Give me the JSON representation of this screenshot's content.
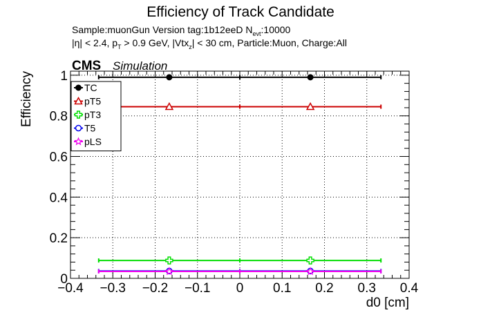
{
  "chart_data": {
    "type": "scatter",
    "title": "Efficiency of Track Candidate",
    "subtitle": {
      "line1": {
        "prefix": "Sample:muonGun   Version tag:1b12eeD  N",
        "sub": "evt",
        "suffix": ":10000"
      },
      "line2": {
        "p1": "|η| < 2.4, p",
        "sub1": "T",
        "p2": " > 0.9 GeV, |Vtx",
        "sub2": "z",
        "p3": "| < 30 cm, Particle:Muon, Charge:All"
      }
    },
    "cms_label": "CMS",
    "simulation_label": "Simulation",
    "xlabel": "d0 [cm]",
    "ylabel": "Efficiency",
    "xlim": [
      -0.4,
      0.4
    ],
    "ylim": [
      0,
      1.02
    ],
    "x_ticks": [
      -0.4,
      -0.3,
      -0.2,
      -0.1,
      0,
      0.1,
      0.2,
      0.3,
      0.4
    ],
    "x_tick_labels": [
      "−0.4",
      "−0.3",
      "−0.2",
      "−0.1",
      "0",
      "0.1",
      "0.2",
      "0.3",
      "0.4"
    ],
    "y_ticks": [
      0,
      0.2,
      0.4,
      0.6,
      0.8,
      1
    ],
    "y_tick_labels": [
      "0",
      "0.2",
      "0.4",
      "0.6",
      "0.8",
      "1"
    ],
    "grid": true,
    "legend_position": "top-left",
    "series": [
      {
        "name": "TC",
        "color": "#000000",
        "marker": "filled-circle",
        "x": [
          -0.1667,
          0.1667
        ],
        "xerr": [
          0.1667,
          0.1667
        ],
        "y": [
          0.99,
          0.99
        ]
      },
      {
        "name": "pT5",
        "color": "#cc0000",
        "marker": "open-triangle",
        "x": [
          -0.1667,
          0.1667
        ],
        "xerr": [
          0.1667,
          0.1667
        ],
        "y": [
          0.845,
          0.845
        ]
      },
      {
        "name": "pT3",
        "color": "#00dd00",
        "marker": "open-cross",
        "x": [
          -0.1667,
          0.1667
        ],
        "xerr": [
          0.1667,
          0.1667
        ],
        "y": [
          0.088,
          0.088
        ]
      },
      {
        "name": "T5",
        "color": "#0000ee",
        "marker": "open-circle",
        "x": [
          -0.1667,
          0.1667
        ],
        "xerr": [
          0.1667,
          0.1667
        ],
        "y": [
          0.036,
          0.036
        ]
      },
      {
        "name": "pLS",
        "color": "#ee00ee",
        "marker": "open-star",
        "x": [
          -0.1667,
          0.1667
        ],
        "xerr": [
          0.1667,
          0.1667
        ],
        "y": [
          0.034,
          0.034
        ]
      }
    ]
  }
}
